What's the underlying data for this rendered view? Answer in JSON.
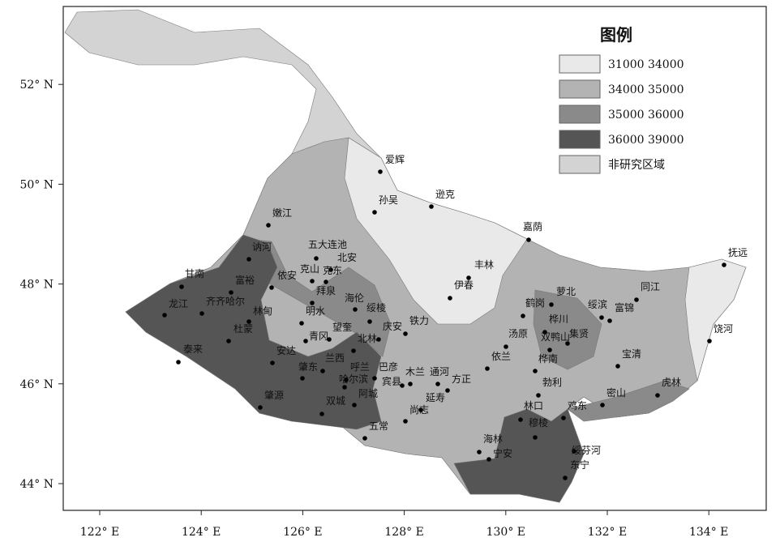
{
  "legend": {
    "title": "图例",
    "items": [
      {
        "label": "31000  34000",
        "color": "#e9e9e9"
      },
      {
        "label": "34000  35000",
        "color": "#b3b3b3"
      },
      {
        "label": "35000  36000",
        "color": "#8a8a8a"
      },
      {
        "label": "36000  39000",
        "color": "#555555"
      },
      {
        "label": "非研究区域",
        "color": "#d3d3d3"
      }
    ]
  },
  "map": {
    "lon_ticks": [
      {
        "value": 122,
        "label": "122° E"
      },
      {
        "value": 124,
        "label": "124° E"
      },
      {
        "value": 126,
        "label": "126° E"
      },
      {
        "value": 128,
        "label": "128° E"
      },
      {
        "value": 130,
        "label": "130° E"
      },
      {
        "value": 132,
        "label": "132° E"
      },
      {
        "value": 134,
        "label": "134° E"
      }
    ],
    "lat_ticks": [
      {
        "value": 44,
        "label": "44° N"
      },
      {
        "value": 46,
        "label": "46° N"
      },
      {
        "value": 48,
        "label": "48° N"
      },
      {
        "value": 50,
        "label": "50° N"
      },
      {
        "value": 52,
        "label": "52° N"
      }
    ],
    "cities": [
      "爱辉",
      "逊克",
      "孙吴",
      "嫩江",
      "嘉荫",
      "讷河",
      "五大连池",
      "北安",
      "克山",
      "克东",
      "丰林",
      "伊春",
      "甘南",
      "富裕",
      "依安",
      "拜泉",
      "萝北",
      "同江",
      "抚远",
      "龙江",
      "齐齐哈尔",
      "林甸",
      "明水",
      "海伦",
      "绥棱",
      "鹤岗",
      "绥滨",
      "富锦",
      "杜蒙",
      "青冈",
      "望奎",
      "北林",
      "庆安",
      "铁力",
      "汤原",
      "桦川",
      "双鸭山",
      "集贤",
      "饶河",
      "泰来",
      "安达",
      "兰西",
      "依兰",
      "桦南",
      "宝清",
      "肇东",
      "呼兰",
      "巴彦",
      "哈尔滨",
      "木兰",
      "通河",
      "方正",
      "宾县",
      "勃利",
      "虎林",
      "肇源",
      "双城",
      "阿城",
      "延寿",
      "尚志",
      "鸡东",
      "林口",
      "密山",
      "五常",
      "穆棱",
      "海林",
      "宁安",
      "绥芬河",
      "东宁"
    ]
  }
}
